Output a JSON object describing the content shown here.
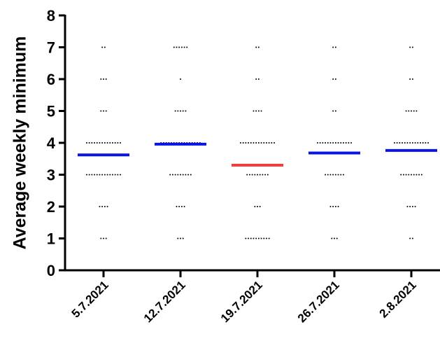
{
  "chart_data": {
    "type": "dot",
    "y_label": "Average weekly minimum",
    "categories": [
      "5.7.2021",
      "12.7.2021",
      "19.7.2021",
      "26.7.2021",
      "2.8.2021"
    ],
    "values": [
      3.62,
      3.96,
      3.3,
      3.68,
      3.76
    ],
    "colors": [
      "#0a14e6",
      "#0a14e6",
      "#ee3b3b",
      "#0a14e6",
      "#0a14e6"
    ],
    "points": [
      [
        7,
        7,
        6,
        6,
        6,
        5,
        5,
        5,
        4,
        4,
        4,
        4,
        4,
        4,
        4,
        4,
        4,
        4,
        4,
        4,
        4,
        4,
        3,
        3,
        3,
        3,
        3,
        3,
        3,
        3,
        3,
        3,
        3,
        3,
        3,
        3,
        2,
        2,
        2,
        2,
        1,
        1,
        1
      ],
      [
        7,
        7,
        7,
        7,
        7,
        7,
        6,
        5,
        5,
        5,
        5,
        5,
        4,
        4,
        4,
        4,
        4,
        4,
        4,
        4,
        4,
        4,
        4,
        4,
        4,
        4,
        4,
        4,
        3,
        3,
        3,
        3,
        3,
        3,
        3,
        3,
        3,
        2,
        2,
        2,
        2,
        1,
        1,
        1
      ],
      [
        7,
        7,
        6,
        6,
        5,
        5,
        5,
        5,
        4,
        4,
        4,
        4,
        4,
        4,
        4,
        4,
        4,
        4,
        4,
        4,
        4,
        4,
        3,
        3,
        3,
        3,
        3,
        3,
        3,
        3,
        3,
        2,
        2,
        2,
        1,
        1,
        1,
        1,
        1,
        1,
        1,
        1,
        1,
        1
      ],
      [
        7,
        7,
        6,
        6,
        5,
        5,
        4,
        4,
        4,
        4,
        4,
        4,
        4,
        4,
        4,
        4,
        4,
        4,
        4,
        4,
        3,
        3,
        3,
        3,
        3,
        3,
        3,
        3,
        2,
        2,
        2,
        2,
        1,
        1,
        1
      ],
      [
        7,
        7,
        6,
        6,
        5,
        5,
        5,
        5,
        5,
        4,
        4,
        4,
        4,
        4,
        4,
        4,
        4,
        4,
        4,
        4,
        4,
        4,
        4,
        3,
        3,
        3,
        3,
        3,
        3,
        3,
        3,
        3,
        2,
        2,
        2,
        2,
        1,
        1
      ]
    ],
    "ylim": [
      0,
      8
    ],
    "yticks": [
      0,
      1,
      2,
      3,
      4,
      5,
      6,
      7,
      8
    ]
  }
}
